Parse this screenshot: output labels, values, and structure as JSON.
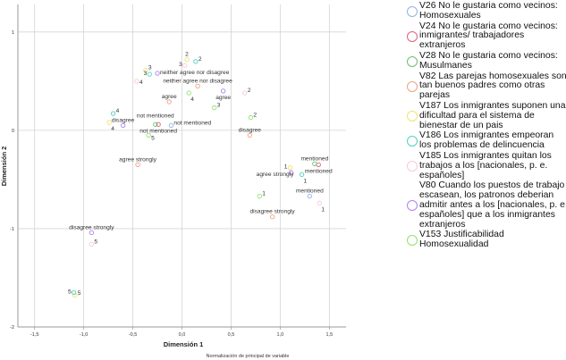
{
  "chart_data": {
    "type": "scatter",
    "title": "",
    "xlabel": "Dimensión 1",
    "ylabel": "Dimensión 2",
    "footnote": "Normalización de principal de variable",
    "xlim": [
      -1.67,
      1.67
    ],
    "ylim": [
      -2.0,
      1.28
    ],
    "grid": true,
    "legend_placement": "right",
    "xticks": [
      -1.5,
      -1.0,
      -0.5,
      0.0,
      0.5,
      1.0,
      1.5
    ],
    "xtick_labels": [
      "-1,5",
      "-1,0",
      "-0,5",
      "0,0",
      "0,5",
      "1,0",
      "1,5"
    ],
    "yticks": [
      1,
      0,
      -1,
      -2
    ],
    "ytick_labels": [
      "1",
      "0",
      "-1",
      "-2"
    ],
    "series": [
      {
        "name": "V26 No le gustaria como vecinos: Homosexuales",
        "color": "#8fb3e8",
        "points": [
          {
            "label": "not mentioned",
            "x": -0.11,
            "y": 0.05,
            "pos": "right"
          },
          {
            "label": "mentioned",
            "x": 1.3,
            "y": -0.67,
            "pos": "above"
          }
        ]
      },
      {
        "name": "V24 No le gustaria como vecinos: inmigrantes/ trabajadores extranjeros",
        "color": "#e0607a",
        "points": [
          {
            "label": "not mentioned",
            "x": -0.24,
            "y": 0.06,
            "pos": "below"
          },
          {
            "label": "mentioned",
            "x": 1.39,
            "y": -0.35,
            "pos": "below"
          }
        ]
      },
      {
        "name": "V28 No le gustaria como vecinos: Musulmanes",
        "color": "#6cbf6c",
        "points": [
          {
            "label": "not mentioned",
            "x": -0.27,
            "y": 0.06,
            "pos": "above"
          },
          {
            "label": "mentioned",
            "x": 1.35,
            "y": -0.34,
            "pos": "above"
          }
        ]
      },
      {
        "name": "V82 Las parejas homosexuales son tan buenos padres como otras parejas",
        "color": "#f0a080",
        "points": [
          {
            "label": "agree strongly",
            "x": -0.45,
            "y": -0.35,
            "pos": "above"
          },
          {
            "label": "agree",
            "x": -0.13,
            "y": 0.29,
            "pos": "above"
          },
          {
            "label": "neither agree nor disagree",
            "x": 0.16,
            "y": 0.45,
            "pos": "above"
          },
          {
            "label": "disagree",
            "x": 0.69,
            "y": -0.05,
            "pos": "above"
          },
          {
            "label": "disagree strongly",
            "x": 0.92,
            "y": -0.88,
            "pos": "above"
          }
        ]
      },
      {
        "name": "V187 Los inmigrantes suponen una dificultad para el sistema de bienestar de un pais",
        "color": "#f0e070",
        "points": [
          {
            "label": "1",
            "x": 1.1,
            "y": -0.38,
            "pos": "left"
          },
          {
            "label": "2",
            "x": 0.05,
            "y": 0.72,
            "pos": "above"
          },
          {
            "label": "3",
            "x": -0.37,
            "y": 0.61,
            "pos": "right"
          },
          {
            "label": "4",
            "x": -0.74,
            "y": 0.08,
            "pos": "below"
          },
          {
            "label": "5",
            "x": -1.09,
            "y": -1.68,
            "pos": "right"
          }
        ]
      },
      {
        "name": "V186 Los inmigrantes empeoran los problemas de delincuencia",
        "color": "#50d0c0",
        "points": [
          {
            "label": "1",
            "x": 1.22,
            "y": -0.45,
            "pos": "below"
          },
          {
            "label": "2",
            "x": 0.14,
            "y": 0.7,
            "pos": "right"
          },
          {
            "label": "3",
            "x": -0.33,
            "y": 0.57,
            "pos": "left"
          },
          {
            "label": "4",
            "x": -0.7,
            "y": 0.17,
            "pos": "right"
          },
          {
            "label": "5",
            "x": -1.1,
            "y": -1.65,
            "pos": "left"
          }
        ]
      },
      {
        "name": "V185 Los inmigrantes quitan los trabajos a los [nacionales, p. e. españoles]",
        "color": "#f8c8d8",
        "points": [
          {
            "label": "1",
            "x": 1.4,
            "y": -0.74,
            "pos": "below"
          },
          {
            "label": "2",
            "x": 0.64,
            "y": 0.38,
            "pos": "right"
          },
          {
            "label": "3",
            "x": 0.03,
            "y": 0.66,
            "pos": "left"
          },
          {
            "label": "4",
            "x": -0.46,
            "y": 0.5,
            "pos": "right"
          },
          {
            "label": "5",
            "x": -0.92,
            "y": -1.16,
            "pos": "right"
          }
        ]
      },
      {
        "name": "V80 Cuando los puestos de trabajo escasean, los patronos deberian admitir antes a los [nacionales, p. e. españoles] que a los inmigrantes extranjeros",
        "color": "#b080f0",
        "points": [
          {
            "label": "agree strongly",
            "x": 1.11,
            "y": -0.43,
            "pos": "leftbelow"
          },
          {
            "label": "agree",
            "x": 0.42,
            "y": 0.4,
            "pos": "below"
          },
          {
            "label": "neither agree nor disagree",
            "x": -0.25,
            "y": 0.58,
            "pos": "right"
          },
          {
            "label": "disagree",
            "x": -0.6,
            "y": 0.05,
            "pos": "above"
          },
          {
            "label": "disagree strongly",
            "x": -0.92,
            "y": -1.04,
            "pos": "above"
          }
        ]
      },
      {
        "name": "V153 Justificabilidad Homosexualidad",
        "color": "#90e070",
        "points": [
          {
            "label": "1",
            "x": 0.79,
            "y": -0.67,
            "pos": "right"
          },
          {
            "label": "2",
            "x": 0.7,
            "y": 0.13,
            "pos": "right"
          },
          {
            "label": "3",
            "x": 0.33,
            "y": 0.23,
            "pos": "right"
          },
          {
            "label": "4",
            "x": 0.07,
            "y": 0.38,
            "pos": "below"
          },
          {
            "label": "5",
            "x": -0.34,
            "y": -0.05,
            "pos": "right"
          }
        ]
      }
    ]
  }
}
